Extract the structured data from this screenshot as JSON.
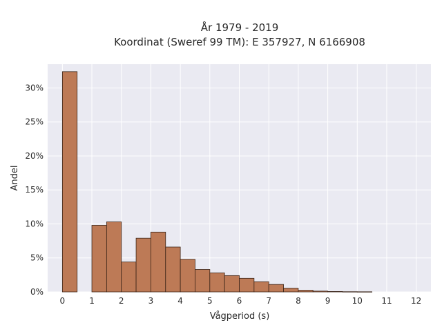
{
  "chart_data": {
    "type": "bar",
    "title_line1": "År 1979 - 2019",
    "title_line2": "Koordinat (Sweref 99 TM): E 357927, N 6166908",
    "xlabel": "Vågperiod (s)",
    "ylabel": "Andel",
    "xlim": [
      -0.5,
      12.5
    ],
    "ylim": [
      0,
      33.5
    ],
    "x_ticks": [
      0,
      1,
      2,
      3,
      4,
      5,
      6,
      7,
      8,
      9,
      10,
      11,
      12
    ],
    "y_ticks": [
      0,
      5,
      10,
      15,
      20,
      25,
      30
    ],
    "y_tick_labels": [
      "0%",
      "5%",
      "10%",
      "15%",
      "20%",
      "25%",
      "30%"
    ],
    "bin_width": 0.5,
    "bins": [
      {
        "x0": 0.0,
        "value": 32.4
      },
      {
        "x0": 0.5,
        "value": 0
      },
      {
        "x0": 1.0,
        "value": 9.8
      },
      {
        "x0": 1.5,
        "value": 10.3
      },
      {
        "x0": 2.0,
        "value": 4.4
      },
      {
        "x0": 2.5,
        "value": 7.9
      },
      {
        "x0": 3.0,
        "value": 8.8
      },
      {
        "x0": 3.5,
        "value": 6.6
      },
      {
        "x0": 4.0,
        "value": 4.8
      },
      {
        "x0": 4.5,
        "value": 3.3
      },
      {
        "x0": 5.0,
        "value": 2.8
      },
      {
        "x0": 5.5,
        "value": 2.4
      },
      {
        "x0": 6.0,
        "value": 2.0
      },
      {
        "x0": 6.5,
        "value": 1.5
      },
      {
        "x0": 7.0,
        "value": 1.1
      },
      {
        "x0": 7.5,
        "value": 0.55
      },
      {
        "x0": 8.0,
        "value": 0.25
      },
      {
        "x0": 8.5,
        "value": 0.12
      },
      {
        "x0": 9.0,
        "value": 0.06
      },
      {
        "x0": 9.5,
        "value": 0.03
      },
      {
        "x0": 10.0,
        "value": 0.02
      }
    ],
    "grid": true,
    "colors": {
      "bar_fill": "#bd7a56",
      "bar_edge": "#3a2418",
      "plot_background": "#eaeaf2",
      "grid": "#ffffff"
    }
  }
}
